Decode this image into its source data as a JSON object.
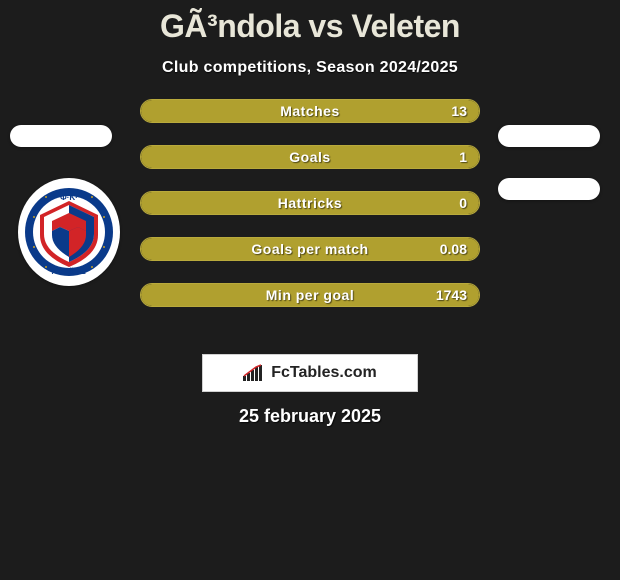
{
  "title": "GÃ³ndola vs Veleten",
  "subtitle": "Club competitions, Season 2024/2025",
  "date": "25 february 2025",
  "branding": {
    "text": "FcTables.com"
  },
  "colors": {
    "background": "#1c1c1c",
    "bar_fill": "#b0a02f",
    "bar_border": "#b9aa3c",
    "title": "#e8e6d8",
    "text": "#ffffff",
    "pill": "#ffffff",
    "panel": "#ffffff"
  },
  "team_badge": {
    "name": "Aktobe",
    "top_text": "Φ·K·",
    "bottom_text": "AKTÖБE",
    "circle_color": "#0a3a8a",
    "accent_color": "#d22427"
  },
  "stats": [
    {
      "label": "Matches",
      "value": "13",
      "fill_pct": 100
    },
    {
      "label": "Goals",
      "value": "1",
      "fill_pct": 100
    },
    {
      "label": "Hattricks",
      "value": "0",
      "fill_pct": 100
    },
    {
      "label": "Goals per match",
      "value": "0.08",
      "fill_pct": 100
    },
    {
      "label": "Min per goal",
      "value": "1743",
      "fill_pct": 100
    }
  ]
}
